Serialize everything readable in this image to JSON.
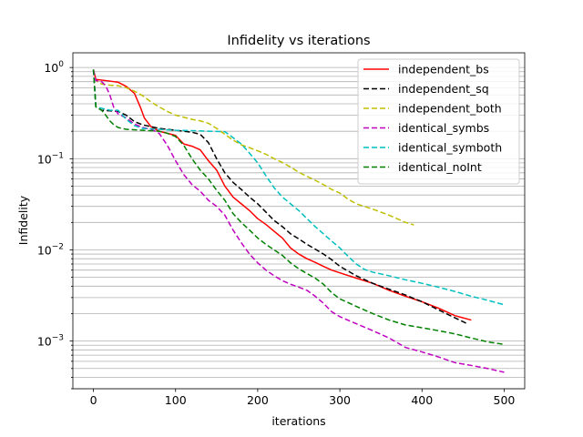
{
  "chart_data": {
    "type": "line",
    "title": "Infidelity vs iterations",
    "xlabel": "iterations",
    "ylabel": "Infidelity",
    "xlim": [
      -25,
      525
    ],
    "ylim": [
      0.0003,
      1.45
    ],
    "yscale": "log",
    "grid": "y-major-and-minor",
    "legend": "top-right",
    "x_ticks": [
      0,
      100,
      200,
      300,
      400,
      500
    ],
    "y_ticks": [
      {
        "value": 1,
        "base": "10",
        "exp": "0"
      },
      {
        "value": 0.1,
        "base": "10",
        "exp": "−1"
      },
      {
        "value": 0.01,
        "base": "10",
        "exp": "−2"
      },
      {
        "value": 0.001,
        "base": "10",
        "exp": "−3"
      }
    ],
    "series": [
      {
        "name": "independent_bs",
        "color": "#ff0000",
        "dash": "solid",
        "points": [
          [
            0,
            0.95
          ],
          [
            3,
            0.74
          ],
          [
            20,
            0.71
          ],
          [
            30,
            0.69
          ],
          [
            40,
            0.62
          ],
          [
            50,
            0.52
          ],
          [
            57,
            0.37
          ],
          [
            62,
            0.28
          ],
          [
            70,
            0.225
          ],
          [
            80,
            0.2
          ],
          [
            90,
            0.19
          ],
          [
            100,
            0.18
          ],
          [
            110,
            0.145
          ],
          [
            120,
            0.137
          ],
          [
            130,
            0.125
          ],
          [
            140,
            0.095
          ],
          [
            150,
            0.075
          ],
          [
            160,
            0.05
          ],
          [
            170,
            0.038
          ],
          [
            180,
            0.032
          ],
          [
            190,
            0.027
          ],
          [
            200,
            0.022
          ],
          [
            210,
            0.019
          ],
          [
            220,
            0.016
          ],
          [
            230,
            0.0135
          ],
          [
            240,
            0.0105
          ],
          [
            250,
            0.009
          ],
          [
            260,
            0.008
          ],
          [
            270,
            0.0073
          ],
          [
            280,
            0.0066
          ],
          [
            290,
            0.006
          ],
          [
            300,
            0.0056
          ],
          [
            320,
            0.0049
          ],
          [
            340,
            0.0043
          ],
          [
            360,
            0.0036
          ],
          [
            380,
            0.0031
          ],
          [
            400,
            0.0027
          ],
          [
            420,
            0.0023
          ],
          [
            440,
            0.0019
          ],
          [
            460,
            0.0017
          ]
        ]
      },
      {
        "name": "independent_sq",
        "color": "#000000",
        "dash": "dashed",
        "points": [
          [
            0,
            0.95
          ],
          [
            3,
            0.37
          ],
          [
            10,
            0.34
          ],
          [
            30,
            0.33
          ],
          [
            40,
            0.3
          ],
          [
            50,
            0.255
          ],
          [
            60,
            0.235
          ],
          [
            70,
            0.225
          ],
          [
            80,
            0.215
          ],
          [
            90,
            0.21
          ],
          [
            100,
            0.205
          ],
          [
            110,
            0.2
          ],
          [
            120,
            0.195
          ],
          [
            130,
            0.185
          ],
          [
            140,
            0.15
          ],
          [
            150,
            0.1
          ],
          [
            160,
            0.07
          ],
          [
            170,
            0.055
          ],
          [
            180,
            0.046
          ],
          [
            190,
            0.038
          ],
          [
            200,
            0.032
          ],
          [
            210,
            0.026
          ],
          [
            220,
            0.021
          ],
          [
            230,
            0.018
          ],
          [
            240,
            0.015
          ],
          [
            250,
            0.0132
          ],
          [
            260,
            0.0115
          ],
          [
            270,
            0.0102
          ],
          [
            280,
            0.009
          ],
          [
            290,
            0.0078
          ],
          [
            300,
            0.0066
          ],
          [
            320,
            0.0052
          ],
          [
            340,
            0.0043
          ],
          [
            360,
            0.0037
          ],
          [
            380,
            0.0032
          ],
          [
            400,
            0.0027
          ],
          [
            420,
            0.0022
          ],
          [
            440,
            0.0018
          ],
          [
            455,
            0.00155
          ]
        ]
      },
      {
        "name": "independent_both",
        "color": "#bfbf00",
        "dash": "dashed",
        "points": [
          [
            0,
            0.95
          ],
          [
            3,
            0.72
          ],
          [
            10,
            0.66
          ],
          [
            20,
            0.64
          ],
          [
            30,
            0.63
          ],
          [
            40,
            0.6
          ],
          [
            50,
            0.55
          ],
          [
            60,
            0.49
          ],
          [
            70,
            0.42
          ],
          [
            80,
            0.37
          ],
          [
            90,
            0.33
          ],
          [
            100,
            0.3
          ],
          [
            110,
            0.285
          ],
          [
            120,
            0.27
          ],
          [
            130,
            0.26
          ],
          [
            140,
            0.245
          ],
          [
            150,
            0.215
          ],
          [
            160,
            0.185
          ],
          [
            170,
            0.16
          ],
          [
            180,
            0.142
          ],
          [
            190,
            0.132
          ],
          [
            200,
            0.122
          ],
          [
            210,
            0.112
          ],
          [
            220,
            0.1
          ],
          [
            230,
            0.091
          ],
          [
            240,
            0.081
          ],
          [
            250,
            0.071
          ],
          [
            260,
            0.064
          ],
          [
            270,
            0.058
          ],
          [
            280,
            0.052
          ],
          [
            290,
            0.046
          ],
          [
            300,
            0.042
          ],
          [
            310,
            0.036
          ],
          [
            320,
            0.032
          ],
          [
            340,
            0.028
          ],
          [
            360,
            0.024
          ],
          [
            380,
            0.02
          ],
          [
            390,
            0.0188
          ]
        ]
      },
      {
        "name": "identical_symbs",
        "color": "#bf00bf",
        "dash": "dashed",
        "points": [
          [
            0,
            0.95
          ],
          [
            3,
            0.72
          ],
          [
            10,
            0.7
          ],
          [
            15,
            0.63
          ],
          [
            20,
            0.5
          ],
          [
            25,
            0.36
          ],
          [
            30,
            0.31
          ],
          [
            40,
            0.28
          ],
          [
            50,
            0.24
          ],
          [
            60,
            0.22
          ],
          [
            70,
            0.21
          ],
          [
            80,
            0.19
          ],
          [
            90,
            0.14
          ],
          [
            100,
            0.095
          ],
          [
            110,
            0.067
          ],
          [
            120,
            0.052
          ],
          [
            130,
            0.044
          ],
          [
            140,
            0.035
          ],
          [
            150,
            0.03
          ],
          [
            160,
            0.024
          ],
          [
            170,
            0.0165
          ],
          [
            180,
            0.012
          ],
          [
            190,
            0.009
          ],
          [
            200,
            0.0072
          ],
          [
            210,
            0.006
          ],
          [
            220,
            0.0052
          ],
          [
            230,
            0.0046
          ],
          [
            240,
            0.0042
          ],
          [
            250,
            0.0039
          ],
          [
            260,
            0.0036
          ],
          [
            270,
            0.0031
          ],
          [
            280,
            0.0026
          ],
          [
            290,
            0.0021
          ],
          [
            300,
            0.00185
          ],
          [
            320,
            0.00155
          ],
          [
            340,
            0.0013
          ],
          [
            360,
            0.00108
          ],
          [
            380,
            0.00085
          ],
          [
            400,
            0.00076
          ],
          [
            420,
            0.00067
          ],
          [
            440,
            0.00058
          ],
          [
            460,
            0.00054
          ],
          [
            480,
            0.0005
          ],
          [
            500,
            0.000455
          ]
        ]
      },
      {
        "name": "identical_symboth",
        "color": "#00bfbf",
        "dash": "dashed",
        "points": [
          [
            0,
            0.95
          ],
          [
            3,
            0.37
          ],
          [
            20,
            0.34
          ],
          [
            30,
            0.34
          ],
          [
            40,
            0.27
          ],
          [
            50,
            0.23
          ],
          [
            60,
            0.215
          ],
          [
            80,
            0.21
          ],
          [
            100,
            0.205
          ],
          [
            120,
            0.203
          ],
          [
            140,
            0.2
          ],
          [
            160,
            0.198
          ],
          [
            170,
            0.17
          ],
          [
            180,
            0.145
          ],
          [
            190,
            0.115
          ],
          [
            200,
            0.09
          ],
          [
            210,
            0.065
          ],
          [
            220,
            0.048
          ],
          [
            230,
            0.038
          ],
          [
            240,
            0.032
          ],
          [
            250,
            0.027
          ],
          [
            260,
            0.022
          ],
          [
            270,
            0.018
          ],
          [
            280,
            0.015
          ],
          [
            290,
            0.0125
          ],
          [
            300,
            0.0105
          ],
          [
            310,
            0.0085
          ],
          [
            320,
            0.007
          ],
          [
            330,
            0.0061
          ],
          [
            340,
            0.0057
          ],
          [
            360,
            0.0052
          ],
          [
            380,
            0.0047
          ],
          [
            400,
            0.0043
          ],
          [
            420,
            0.0039
          ],
          [
            440,
            0.0035
          ],
          [
            460,
            0.0031
          ],
          [
            480,
            0.0028
          ],
          [
            500,
            0.0025
          ]
        ]
      },
      {
        "name": "identical_noInt",
        "color": "#008000",
        "dash": "dashed",
        "points": [
          [
            0,
            0.95
          ],
          [
            3,
            0.37
          ],
          [
            10,
            0.34
          ],
          [
            15,
            0.3
          ],
          [
            20,
            0.26
          ],
          [
            25,
            0.235
          ],
          [
            30,
            0.22
          ],
          [
            40,
            0.21
          ],
          [
            60,
            0.205
          ],
          [
            80,
            0.2
          ],
          [
            90,
            0.19
          ],
          [
            100,
            0.175
          ],
          [
            110,
            0.14
          ],
          [
            120,
            0.1
          ],
          [
            130,
            0.075
          ],
          [
            140,
            0.06
          ],
          [
            150,
            0.045
          ],
          [
            160,
            0.035
          ],
          [
            170,
            0.025
          ],
          [
            180,
            0.02
          ],
          [
            190,
            0.0165
          ],
          [
            200,
            0.0135
          ],
          [
            210,
            0.0115
          ],
          [
            220,
            0.01
          ],
          [
            230,
            0.0087
          ],
          [
            240,
            0.0072
          ],
          [
            250,
            0.0062
          ],
          [
            260,
            0.0055
          ],
          [
            270,
            0.0049
          ],
          [
            280,
            0.0042
          ],
          [
            290,
            0.0034
          ],
          [
            300,
            0.0029
          ],
          [
            320,
            0.0024
          ],
          [
            340,
            0.002
          ],
          [
            360,
            0.0017
          ],
          [
            380,
            0.0015
          ],
          [
            400,
            0.0014
          ],
          [
            420,
            0.0013
          ],
          [
            440,
            0.0012
          ],
          [
            460,
            0.00108
          ],
          [
            480,
            0.00098
          ],
          [
            500,
            0.00092
          ]
        ]
      }
    ]
  }
}
